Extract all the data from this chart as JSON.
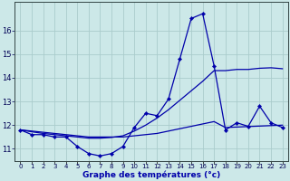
{
  "title": "Graphe des températures (°c)",
  "bg_color": "#cce8e8",
  "grid_color": "#aacccc",
  "line_color": "#0000aa",
  "hours": [
    0,
    1,
    2,
    3,
    4,
    5,
    6,
    7,
    8,
    9,
    10,
    11,
    12,
    13,
    14,
    15,
    16,
    17,
    18,
    19,
    20,
    21,
    22,
    23
  ],
  "temp_actual": [
    11.8,
    11.6,
    11.6,
    11.5,
    11.5,
    11.1,
    10.8,
    10.7,
    10.8,
    11.1,
    11.9,
    12.5,
    12.4,
    13.1,
    14.8,
    16.5,
    16.7,
    14.5,
    11.8,
    12.1,
    11.95,
    12.8,
    12.1,
    11.9
  ],
  "temp_line2": [
    11.8,
    11.75,
    11.7,
    11.65,
    11.6,
    11.55,
    11.5,
    11.5,
    11.5,
    11.5,
    11.55,
    11.6,
    11.65,
    11.75,
    11.85,
    11.95,
    12.05,
    12.15,
    11.9,
    11.92,
    11.94,
    11.96,
    11.98,
    12.0
  ],
  "temp_line3": [
    11.8,
    11.72,
    11.65,
    11.6,
    11.55,
    11.5,
    11.45,
    11.45,
    11.48,
    11.55,
    11.75,
    12.0,
    12.3,
    12.65,
    13.05,
    13.45,
    13.85,
    14.3,
    14.3,
    14.35,
    14.35,
    14.4,
    14.42,
    14.38
  ],
  "ylim": [
    10.5,
    17.2
  ],
  "yticks": [
    11,
    12,
    13,
    14,
    15,
    16
  ],
  "xlim": [
    -0.5,
    23.5
  ]
}
